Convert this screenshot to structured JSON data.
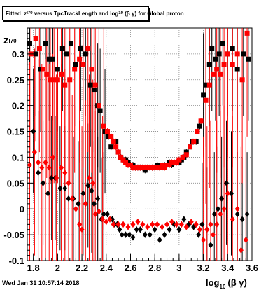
{
  "title": {
    "prefix": "Fitted",
    "z_sym": "z",
    "z_sub": "I70",
    "mid": "versus TpcTrackLength and log",
    "log_sub": "10",
    "suffix": "(β γ) for Global proton"
  },
  "footer": "Wed Jan 31 10:57:14 2018",
  "colors": {
    "black_series": "#000000",
    "red_series": "#ff0000",
    "grid": "#888888"
  },
  "chart_data": {
    "type": "scatter",
    "xlabel_main": "log",
    "xlabel_sub": "10",
    "xlabel_rest": "(β γ)",
    "ylabel_main": "z",
    "ylabel_sub": "I70",
    "xlim": [
      1.75,
      3.6
    ],
    "ylim": [
      -0.1,
      0.35
    ],
    "x_ticks": [
      "1.8",
      "2",
      "2.2",
      "2.4",
      "2.6",
      "2.8",
      "3",
      "3.2",
      "3.4",
      "3.6"
    ],
    "y_ticks": [
      "-0.1",
      "-0.05",
      "0",
      "0.05",
      "0.1",
      "0.15",
      "0.2",
      "0.25",
      "0.3"
    ],
    "grid": true,
    "series": [
      {
        "color": "black",
        "upper": [
          [
            1.77,
            0.32
          ],
          [
            1.82,
            0.3
          ],
          [
            1.86,
            0.27
          ],
          [
            1.9,
            0.32
          ],
          [
            1.93,
            0.29
          ],
          [
            1.96,
            0.29
          ],
          [
            2.0,
            0.27
          ],
          [
            2.04,
            0.31
          ],
          [
            2.07,
            0.3
          ],
          [
            2.11,
            0.32
          ],
          [
            2.15,
            0.28
          ],
          [
            2.19,
            0.31
          ],
          [
            2.23,
            0.3
          ],
          [
            2.27,
            0.24
          ],
          [
            2.3,
            0.23
          ],
          [
            2.33,
            0.2
          ],
          [
            2.35,
            0.19
          ],
          [
            2.39,
            0.15
          ],
          [
            2.42,
            0.14
          ],
          [
            2.44,
            0.12
          ],
          [
            2.46,
            0.13
          ],
          [
            2.48,
            0.13
          ],
          [
            2.5,
            0.11
          ],
          [
            2.52,
            0.1
          ],
          [
            2.54,
            0.095
          ],
          [
            2.56,
            0.095
          ],
          [
            2.58,
            0.09
          ],
          [
            2.6,
            0.085
          ],
          [
            2.62,
            0.085
          ],
          [
            2.64,
            0.08
          ],
          [
            2.66,
            0.08
          ],
          [
            2.68,
            0.08
          ],
          [
            2.7,
            0.08
          ],
          [
            2.72,
            0.075
          ],
          [
            2.74,
            0.08
          ],
          [
            2.76,
            0.08
          ],
          [
            2.78,
            0.08
          ],
          [
            2.8,
            0.08
          ],
          [
            2.82,
            0.085
          ],
          [
            2.84,
            0.08
          ],
          [
            2.86,
            0.08
          ],
          [
            2.88,
            0.085
          ],
          [
            2.9,
            0.085
          ],
          [
            2.92,
            0.09
          ],
          [
            2.94,
            0.085
          ],
          [
            2.96,
            0.09
          ],
          [
            2.98,
            0.09
          ],
          [
            3.0,
            0.09
          ],
          [
            3.02,
            0.095
          ],
          [
            3.04,
            0.1
          ],
          [
            3.06,
            0.11
          ],
          [
            3.09,
            0.12
          ],
          [
            3.11,
            0.13
          ],
          [
            3.14,
            0.13
          ],
          [
            3.17,
            0.16
          ],
          [
            3.2,
            0.22
          ],
          [
            3.22,
            0.24
          ],
          [
            3.25,
            0.28
          ],
          [
            3.27,
            0.31
          ],
          [
            3.3,
            0.29
          ],
          [
            3.33,
            0.3
          ],
          [
            3.36,
            0.32
          ],
          [
            3.4,
            0.3
          ],
          [
            3.44,
            0.31
          ],
          [
            3.48,
            0.27
          ],
          [
            3.53,
            0.3
          ],
          [
            3.57,
            0.29
          ]
        ],
        "lower": [
          [
            1.8,
            0.15
          ],
          [
            1.84,
            0.07
          ],
          [
            1.88,
            0.05
          ],
          [
            1.92,
            0.03
          ],
          [
            1.95,
            0.06
          ],
          [
            1.98,
            0.06
          ],
          [
            2.02,
            0.04
          ],
          [
            2.06,
            0.04
          ],
          [
            2.09,
            0.02
          ],
          [
            2.13,
            0.02
          ],
          [
            2.17,
            0.01
          ],
          [
            2.21,
            0.03
          ],
          [
            2.25,
            0.045
          ],
          [
            2.28,
            0.035
          ],
          [
            2.3,
            0.01
          ],
          [
            2.33,
            0.02
          ],
          [
            2.36,
            -0.02
          ],
          [
            2.38,
            -0.01
          ],
          [
            2.41,
            -0.01
          ],
          [
            2.43,
            -0.02
          ],
          [
            2.45,
            -0.02
          ],
          [
            2.47,
            -0.03
          ],
          [
            2.49,
            -0.03
          ],
          [
            2.51,
            -0.04
          ],
          [
            2.53,
            -0.05
          ],
          [
            2.56,
            -0.05
          ],
          [
            2.59,
            -0.05
          ],
          [
            2.62,
            -0.055
          ],
          [
            2.65,
            -0.04
          ],
          [
            2.68,
            -0.04
          ],
          [
            2.72,
            -0.05
          ],
          [
            2.76,
            -0.05
          ],
          [
            2.8,
            -0.04
          ],
          [
            2.84,
            -0.06
          ],
          [
            2.88,
            -0.05
          ],
          [
            2.92,
            -0.04
          ],
          [
            2.96,
            -0.03
          ],
          [
            3.0,
            -0.04
          ],
          [
            3.04,
            -0.02
          ],
          [
            3.08,
            -0.03
          ],
          [
            3.12,
            -0.035
          ],
          [
            3.16,
            -0.05
          ],
          [
            3.19,
            -0.03
          ],
          [
            3.23,
            -0.04
          ],
          [
            3.26,
            -0.07
          ],
          [
            3.29,
            -0.01
          ],
          [
            3.32,
            0.0
          ],
          [
            3.35,
            0.02
          ],
          [
            3.39,
            0.05
          ],
          [
            3.43,
            0.03
          ],
          [
            3.48,
            -0.01
          ],
          [
            3.52,
            -0.02
          ],
          [
            3.56,
            -0.01
          ]
        ]
      },
      {
        "color": "red",
        "upper": [
          [
            1.78,
            0.3
          ],
          [
            1.82,
            0.33
          ],
          [
            1.85,
            0.31
          ],
          [
            1.88,
            0.27
          ],
          [
            1.91,
            0.26
          ],
          [
            1.94,
            0.25
          ],
          [
            1.97,
            0.25
          ],
          [
            2.0,
            0.25
          ],
          [
            2.03,
            0.26
          ],
          [
            2.06,
            0.24
          ],
          [
            2.1,
            0.25
          ],
          [
            2.14,
            0.27
          ],
          [
            2.18,
            0.29
          ],
          [
            2.21,
            0.28
          ],
          [
            2.25,
            0.31
          ],
          [
            2.28,
            0.27
          ],
          [
            2.31,
            0.24
          ],
          [
            2.34,
            0.2
          ],
          [
            2.38,
            0.16
          ],
          [
            2.41,
            0.15
          ],
          [
            2.44,
            0.14
          ],
          [
            2.46,
            0.13
          ],
          [
            2.48,
            0.12
          ],
          [
            2.5,
            0.11
          ],
          [
            2.52,
            0.1
          ],
          [
            2.54,
            0.095
          ],
          [
            2.56,
            0.09
          ],
          [
            2.58,
            0.085
          ],
          [
            2.6,
            0.085
          ],
          [
            2.62,
            0.08
          ],
          [
            2.64,
            0.08
          ],
          [
            2.66,
            0.08
          ],
          [
            2.68,
            0.08
          ],
          [
            2.7,
            0.08
          ],
          [
            2.72,
            0.08
          ],
          [
            2.74,
            0.08
          ],
          [
            2.76,
            0.08
          ],
          [
            2.78,
            0.08
          ],
          [
            2.8,
            0.08
          ],
          [
            2.82,
            0.08
          ],
          [
            2.84,
            0.08
          ],
          [
            2.86,
            0.085
          ],
          [
            2.88,
            0.08
          ],
          [
            2.9,
            0.085
          ],
          [
            2.92,
            0.085
          ],
          [
            2.94,
            0.09
          ],
          [
            2.96,
            0.09
          ],
          [
            2.98,
            0.09
          ],
          [
            3.0,
            0.095
          ],
          [
            3.03,
            0.1
          ],
          [
            3.06,
            0.105
          ],
          [
            3.09,
            0.12
          ],
          [
            3.12,
            0.13
          ],
          [
            3.15,
            0.15
          ],
          [
            3.18,
            0.17
          ],
          [
            3.22,
            0.21
          ],
          [
            3.25,
            0.24
          ],
          [
            3.28,
            0.26
          ],
          [
            3.31,
            0.27
          ],
          [
            3.34,
            0.26
          ],
          [
            3.37,
            0.28
          ],
          [
            3.4,
            0.3
          ],
          [
            3.44,
            0.28
          ],
          [
            3.48,
            0.3
          ],
          [
            3.52,
            0.25
          ],
          [
            3.56,
            0.34
          ]
        ],
        "lower": [
          [
            1.77,
            0.085
          ],
          [
            1.81,
            0.11
          ],
          [
            1.84,
            0.09
          ],
          [
            1.87,
            0.08
          ],
          [
            1.9,
            0.09
          ],
          [
            1.93,
            0.08
          ],
          [
            1.96,
            0.1
          ],
          [
            1.99,
            0.06
          ],
          [
            2.03,
            0.08
          ],
          [
            2.06,
            0.07
          ],
          [
            2.09,
            0.05
          ],
          [
            2.12,
            0.02
          ],
          [
            2.15,
            0.0
          ],
          [
            2.18,
            -0.03
          ],
          [
            2.2,
            -0.04
          ],
          [
            2.23,
            0.01
          ],
          [
            2.26,
            0.06
          ],
          [
            2.29,
            0.05
          ],
          [
            2.31,
            -0.01
          ],
          [
            2.34,
            -0.005
          ],
          [
            2.37,
            -0.02
          ],
          [
            2.4,
            -0.025
          ],
          [
            2.43,
            -0.02
          ],
          [
            2.46,
            -0.03
          ],
          [
            2.5,
            -0.03
          ],
          [
            2.54,
            -0.03
          ],
          [
            2.58,
            -0.035
          ],
          [
            2.62,
            -0.03
          ],
          [
            2.66,
            -0.025
          ],
          [
            2.7,
            -0.03
          ],
          [
            2.74,
            -0.035
          ],
          [
            2.78,
            -0.03
          ],
          [
            2.82,
            -0.03
          ],
          [
            2.86,
            -0.035
          ],
          [
            2.9,
            -0.03
          ],
          [
            2.94,
            -0.025
          ],
          [
            2.98,
            -0.03
          ],
          [
            3.02,
            -0.03
          ],
          [
            3.06,
            -0.035
          ],
          [
            3.1,
            -0.025
          ],
          [
            3.14,
            -0.03
          ],
          [
            3.17,
            -0.04
          ],
          [
            3.2,
            -0.06
          ],
          [
            3.23,
            -0.04
          ],
          [
            3.26,
            -0.03
          ],
          [
            3.28,
            -0.05
          ],
          [
            3.31,
            -0.03
          ],
          [
            3.34,
            -0.01
          ],
          [
            3.37,
            0.0
          ],
          [
            3.4,
            0.03
          ],
          [
            3.44,
            -0.02
          ],
          [
            3.48,
            0.0
          ],
          [
            3.51,
            -0.08
          ],
          [
            3.55,
            -0.06
          ]
        ]
      }
    ]
  }
}
